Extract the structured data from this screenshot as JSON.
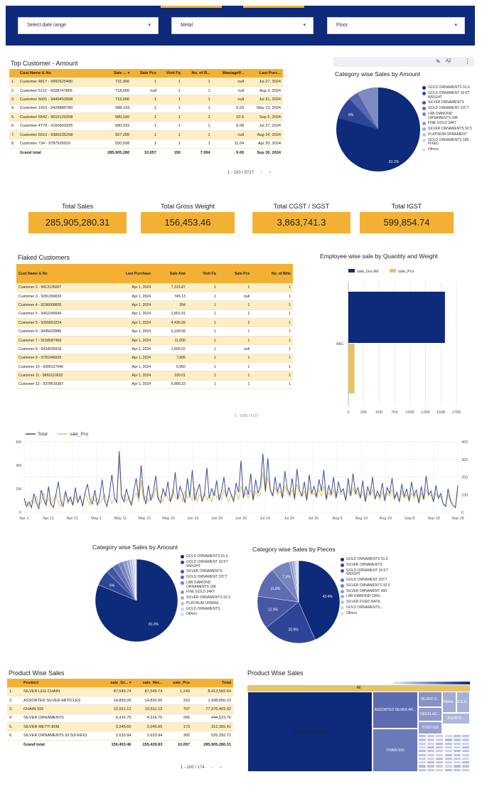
{
  "filters": [
    {
      "label": "Select date range"
    },
    {
      "label": "Metal"
    },
    {
      "label": "Floor"
    }
  ],
  "colors": {
    "navy": "#0e2a7a",
    "gold": "#f2b134",
    "cream": "#fdeec4",
    "tan": "#e3c466"
  },
  "top_customer": {
    "title": "Top Customer - Amount",
    "columns": [
      "Cust Name & No",
      "Sale ...",
      "Sale Pcs",
      "Visit Fq",
      "No. of B...",
      "WastageP...",
      "Last Purc..."
    ],
    "rows": [
      [
        "1.",
        "Customer 4817 - 9992625490",
        "731,906",
        "1",
        "1",
        "1",
        "null",
        "Jul 27, 2024"
      ],
      [
        "2.",
        "Customer 5112 - 9328747805",
        "718,000",
        "null",
        "1",
        "1",
        "null",
        "Aug 3, 2024"
      ],
      [
        "3.",
        "Customer 5001 - 9449453998",
        "715,000",
        "1",
        "1",
        "1",
        "null",
        "Jul 31, 2024"
      ],
      [
        "4.",
        "Customer 1910 - 9428885780",
        "588,193",
        "1",
        "1",
        "1",
        "6.03",
        "May 13, 2024"
      ],
      [
        "5.",
        "Customer 6542 - 9515129208",
        "580,160",
        "1",
        "1",
        "1",
        "10.5",
        "Sep 5, 2024"
      ],
      [
        "6.",
        "Customer 4779 - 9160603325",
        "580,015",
        "1",
        "1",
        "1",
        "9.08",
        "Jul 27, 2024"
      ],
      [
        "7.",
        "Customer 6013 - 9380235298",
        "557,200",
        "1",
        "1",
        "1",
        "null",
        "Aug 24, 2024"
      ],
      [
        "8.",
        "Customer 734 - 9787526010",
        "550,508",
        "1",
        "1",
        "1",
        "11.04",
        "Apr 20, 2024"
      ]
    ],
    "total": [
      "Grand total",
      "285,905,280",
      "10,057",
      "159",
      "7,094",
      "9.65",
      "Sep 30, 2024"
    ],
    "pager": "1 - 100 / 9727"
  },
  "category_top": {
    "title": "Category wise Sales by Amount",
    "label_big": "81.2%",
    "label_small": "6%",
    "legend": [
      "GOLD ORNAMENTS 91.6",
      "GOLD ORNAMENT 18 KT WEIGHT",
      "SILVER ORNAMENTS",
      "GOLD ORNAMENT 22CT",
      "LAB DIAMOND ORNAMENTS 18K",
      "FINE GOLD 24KT",
      "SILVER ORNAMENTS 92.5",
      "PLATINUM ORNAMENT",
      "GOLD ORNAMENTS 18K FIXED",
      "Others"
    ]
  },
  "kpis": [
    {
      "label": "Total Sales",
      "value": "285,905,280.31"
    },
    {
      "label": "Total Gross Weight",
      "value": "156,453.46"
    },
    {
      "label": "Total CGST / SGST",
      "value": "3,863,741.3"
    },
    {
      "label": "Total IGST",
      "value": "599,854.74"
    }
  ],
  "flaked": {
    "title": "Flaked Customers",
    "columns": [
      "Cust Name & No",
      "Last Purchase",
      "Sale Amt",
      "Visit Fq",
      "Sale Pcs",
      "No. of Bills"
    ],
    "rows": [
      [
        "Customer 3 - 9413135007",
        "Apr 1, 2024",
        "7,315.87",
        "1",
        "1",
        "1"
      ],
      [
        "Customer 3 - 9281399033",
        "Apr 1, 2024",
        "745.13",
        "1",
        "null",
        "1"
      ],
      [
        "Customer 4 - 9196668605",
        "Apr 1, 2024",
        "394",
        "1",
        "1",
        "1"
      ],
      [
        "Customer 5 - 9462245644",
        "Apr 1, 2024",
        "2,802.91",
        "1",
        "2",
        "1"
      ],
      [
        "Customer 5 - 9355653224",
        "Apr 1, 2024",
        "4,436.09",
        "1",
        "2",
        "1"
      ],
      [
        "Customer 6 - 9945633986",
        "Apr 1, 2024",
        "6,199.99",
        "1",
        "1",
        "1"
      ],
      [
        "Customer 7 - 9158587468",
        "Apr 1, 2024",
        "11,000",
        "1",
        "1",
        "1"
      ],
      [
        "Customer 8 - 9434035918",
        "Apr 1, 2024",
        "2,800.02",
        "1",
        "null",
        "1"
      ],
      [
        "Customer 9 - 9781046920",
        "Apr 1, 2024",
        "7,895",
        "1",
        "1",
        "1"
      ],
      [
        "Customer 10 - 9300127640",
        "Apr 1, 2024",
        "6,950",
        "1",
        "1",
        "1"
      ],
      [
        "Customer 11 - 9660110632",
        "Apr 1, 2024",
        "100.01",
        "1",
        "1",
        "1"
      ],
      [
        "Customer 12 - 9378616397",
        "Apr 1, 2024",
        "6,889.33",
        "1",
        "1",
        "1"
      ]
    ],
    "pager": "1 - 1000 / 6727"
  },
  "chart_data": [
    {
      "type": "bar",
      "title": "Employee wise sale by Quantity and Weight",
      "categories": [
        "ABC"
      ],
      "series": [
        {
          "name": "sale_Grs.Wt",
          "values": [
            156453.46
          ]
        },
        {
          "name": "sale_Pcs",
          "values": [
            10057
          ]
        }
      ],
      "xlim": [
        0,
        175000
      ],
      "xticks": [
        "0",
        "25K",
        "50K",
        "75K",
        "100K",
        "125K",
        "150K",
        "175K"
      ],
      "legend": "top-left",
      "grid": true
    },
    {
      "type": "line",
      "title": "",
      "series": [
        {
          "name": "Total",
          "values": [
            1.2,
            0.5,
            0.9,
            0.4,
            1.6,
            0.8,
            0.3,
            1.9,
            1.1,
            0.6,
            2.2,
            0.7,
            0.4,
            1.5,
            2.6,
            1.0,
            0.5,
            1.8,
            0.9,
            1.3,
            0.6,
            2.1,
            0.8,
            1.4,
            0.5,
            1.7,
            2.4,
            1.1,
            0.7,
            1.9,
            0.6,
            1.2,
            2.8,
            1.0,
            0.5,
            1.6,
            3.2,
            1.3,
            0.8,
            5.2,
            1.4,
            0.9,
            2.0,
            1.1,
            0.6,
            1.8,
            2.9,
            1.2,
            4.0,
            1.5,
            0.7,
            2.3,
            1.0,
            1.7,
            3.1,
            1.2,
            0.8,
            2.0,
            1.4,
            2.6,
            0.9,
            1.5,
            3.4,
            1.1,
            2.2,
            1.6,
            0.8,
            2.9,
            1.3,
            3.6,
            1.0,
            1.8,
            2.4,
            0.9,
            1.5,
            3.8,
            1.2,
            2.0,
            1.4,
            2.7,
            1.0,
            1.8,
            3.0,
            1.3,
            2.1,
            1.5,
            0.9,
            2.5,
            1.7,
            4.4,
            1.2,
            2.2,
            1.5,
            3.3,
            1.0,
            2.8,
            1.6,
            2.3,
            5.0,
            1.8,
            4.6,
            2.0,
            1.4,
            3.0,
            1.7,
            2.5,
            1.2,
            3.5,
            2.0,
            1.5,
            2.9,
            1.1,
            3.7,
            1.9,
            1.4,
            2.6,
            1.0,
            3.2,
            1.6,
            2.2,
            1.3,
            2.8,
            1.8,
            3.6,
            1.1,
            2.3,
            1.5,
            3.0,
            1.2,
            2.6,
            1.7,
            2.0,
            1.0,
            2.9,
            1.4,
            3.3,
            1.6,
            2.1,
            1.2,
            2.7,
            0.9,
            2.2,
            1.5,
            3.0,
            1.1,
            1.8,
            1.3,
            2.5,
            1.0,
            2.1,
            1.6,
            2.9,
            1.2,
            1.7,
            0.9,
            2.4,
            1.3,
            2.0,
            1.0,
            2.6,
            1.4,
            1.9,
            0.8,
            2.2,
            1.1,
            3.1,
            1.5,
            1.8,
            0.9,
            2.3,
            1.2,
            1.6,
            0.7,
            0.5,
            2.0,
            1.0,
            0.6,
            0.4,
            2.3
          ]
        },
        {
          "name": "sale_Pcs",
          "values": [
            40,
            60,
            30,
            70,
            50,
            90,
            40,
            60,
            110,
            50,
            80,
            40,
            70,
            100,
            60,
            30,
            80,
            120,
            50,
            70,
            40,
            90,
            60,
            80,
            50,
            110,
            70,
            40,
            90,
            60,
            80,
            50,
            70,
            100,
            60,
            90,
            50,
            80,
            60,
            290,
            70,
            100,
            60,
            90,
            50,
            80,
            110,
            60,
            180,
            70,
            90,
            60,
            100,
            80,
            140,
            70,
            90,
            60,
            110,
            80,
            60,
            130,
            90,
            70,
            100,
            60,
            120,
            80,
            90,
            70,
            140,
            60,
            100,
            80,
            110,
            70,
            90,
            60,
            120,
            80,
            100,
            70,
            130,
            90,
            60,
            100,
            80,
            120,
            70,
            150,
            90,
            110,
            80,
            130,
            70,
            120,
            90,
            100,
            230,
            110,
            200,
            120,
            90,
            140,
            100,
            120,
            80,
            150,
            110,
            90,
            130,
            80,
            160,
            100,
            90,
            120,
            70,
            140,
            100,
            110,
            80,
            130,
            90,
            150,
            70,
            110,
            90,
            130,
            80,
            120,
            100,
            110,
            70,
            130,
            90,
            140,
            100,
            110,
            80,
            120,
            60,
            110,
            90,
            130,
            80,
            100,
            70,
            120,
            60,
            110,
            90,
            130,
            70,
            100,
            60,
            120,
            80,
            100,
            60,
            110,
            80,
            100,
            50,
            110,
            70,
            130,
            90,
            100,
            60,
            110,
            80,
            90,
            50,
            40,
            100,
            60,
            40,
            30,
            120
          ]
        }
      ],
      "x_labels": [
        "Apr 1",
        "Apr 11",
        "Apr 21",
        "May 1",
        "May 11",
        "May 21",
        "May 31",
        "Jun 10",
        "Jun 20",
        "Jun 30",
        "Jul 10",
        "Jul 20",
        "Jul 30",
        "Aug 9",
        "Aug 19",
        "Aug 29",
        "Sep 8",
        "Sep 18",
        "Sep 28"
      ],
      "y_left": {
        "ticks": [
          "0",
          "2M",
          "4M",
          "6M"
        ],
        "lim": [
          0,
          6
        ]
      },
      "y_right": {
        "ticks": [
          "0",
          "100",
          "200",
          "300",
          "400"
        ],
        "lim": [
          0,
          400
        ]
      },
      "legend": "top-left",
      "grid": true
    },
    {
      "type": "pie",
      "title": "Category wise Sales by Amount",
      "slices": [
        {
          "label": "GOLD ORNAMENTS 91.6",
          "value": 81.2
        },
        {
          "label": "GOLD ORNAMENT 18 KT WEIGHT",
          "value": 6
        },
        {
          "label": "SILVER ORNAMENTS",
          "value": 3
        },
        {
          "label": "GOLD ORNAMENT 22CT",
          "value": 2.5
        },
        {
          "label": "LAB DIAMOND ORNAMENTS 18K",
          "value": 2
        },
        {
          "label": "FINE GOLD 24KT",
          "value": 1.5
        },
        {
          "label": "SILVER ORNAMENTS 92.5",
          "value": 1.2
        },
        {
          "label": "PLATINUM ORNAM...",
          "value": 1
        },
        {
          "label": "GOLD ORNAMENTS...",
          "value": 0.9
        },
        {
          "label": "Others",
          "value": 0.7
        }
      ],
      "legend": "right"
    },
    {
      "type": "pie",
      "title": "Category wise Sales by Pieces",
      "slices": [
        {
          "label": "GOLD ORNAMENTS 91.6",
          "value": 43.4
        },
        {
          "label": "SILVER ORNAMENTS",
          "value": 20.9
        },
        {
          "label": "GOLD ORNAMENT 18 KT WEIGHT",
          "value": 12.9
        },
        {
          "label": "GOLD ORNAMENT 22CT",
          "value": 11.8
        },
        {
          "label": "SILVER ORNAMENTS 92.5",
          "value": 7.3
        },
        {
          "label": "SILVER ORNAMENT 999",
          "value": 1.2
        },
        {
          "label": "LAB DIAMOND ORN...",
          "value": 1
        },
        {
          "label": "SILVER FIXED RATE",
          "value": 0.6
        },
        {
          "label": "GOLD ORNAMENTS...",
          "value": 0.5
        },
        {
          "label": "Others",
          "value": 0.4
        }
      ],
      "legend": "right"
    },
    {
      "type": "treemap",
      "title": "Product Wise Sales",
      "root": "All",
      "cells": [
        {
          "label": "SILVER LEG CHAIN",
          "value": 8412582.64
        },
        {
          "label": "ASSORTED SILVER AR...",
          "value": 1438656.23
        },
        {
          "label": "CHAIN 916",
          "value": 77376403.02
        },
        {
          "label": "SILVER O...",
          "value": 444523.76
        },
        {
          "label": "NECKLAC...",
          "value": 0
        },
        {
          "label": "STUD 916",
          "value": 0
        },
        {
          "label": "HARA...",
          "value": 0
        },
        {
          "label": "GOLD...",
          "value": 0
        },
        {
          "label": "ASORTE...",
          "value": 0
        }
      ]
    }
  ],
  "product_table": {
    "title": "Product Wise Sales",
    "columns": [
      "Product",
      "sale_Gr...",
      "sale_Net...",
      "sale_Pcs",
      "Total"
    ],
    "rows": [
      [
        "1.",
        "SILVER LEG CHAIN",
        "87,545.74",
        "87,545.74",
        "1,243",
        "8,412,582.64"
      ],
      [
        "2.",
        "ASSORTED SILVER ARTICLES",
        "14,830.05",
        "14,830.05",
        "310",
        "1,438,656.23"
      ],
      [
        "3.",
        "CHAIN 916",
        "10,511.12",
        "10,511.12",
        "707",
        "77,376,403.02"
      ],
      [
        "4.",
        "SILVER ORNAMENTS",
        "4,316.75",
        "4,316.75",
        "265",
        "444,523.76"
      ],
      [
        "5.",
        "SILVER METTI 80M",
        "3,245.65",
        "3,245.65",
        "173",
        "312,355.41"
      ],
      [
        "6.",
        "SILVER ORNAMENTS 92.5(FIXED)",
        "2,633.94",
        "2,633.94",
        "302",
        "526,292.72"
      ]
    ],
    "total": [
      "Grand total",
      "156,453.46",
      "155,439.83",
      "10,057",
      "285,905,280.31"
    ],
    "pager": "1 - 100 / 174"
  }
}
